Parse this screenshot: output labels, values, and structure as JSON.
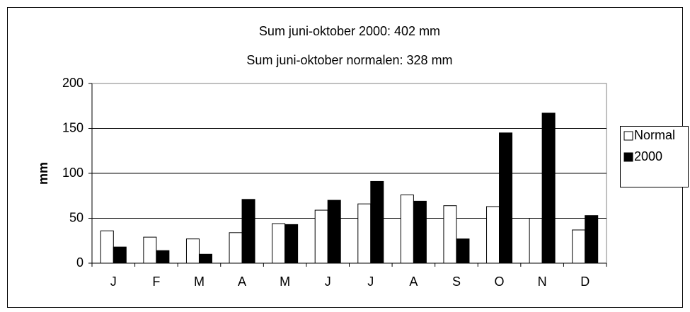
{
  "chart_data": {
    "type": "bar",
    "title": "Sum juni-oktober 2000: 402 mm",
    "subtitle": "Sum juni-oktober normalen: 328 mm",
    "y_label": "mm",
    "categories": [
      "J",
      "F",
      "M",
      "A",
      "M",
      "J",
      "J",
      "A",
      "S",
      "O",
      "N",
      "D"
    ],
    "series": [
      {
        "name": "Normal",
        "color": "#ffffff",
        "values": [
          36,
          29,
          27,
          34,
          44,
          59,
          66,
          76,
          64,
          63,
          50,
          37
        ]
      },
      {
        "name": "2000",
        "color": "#000000",
        "values": [
          18,
          14,
          10,
          71,
          43,
          70,
          91,
          69,
          27,
          145,
          167,
          53
        ]
      }
    ],
    "ylim": [
      0,
      200
    ],
    "yticks": [
      0,
      50,
      100,
      150,
      200
    ],
    "grid": true,
    "legend": "right"
  }
}
